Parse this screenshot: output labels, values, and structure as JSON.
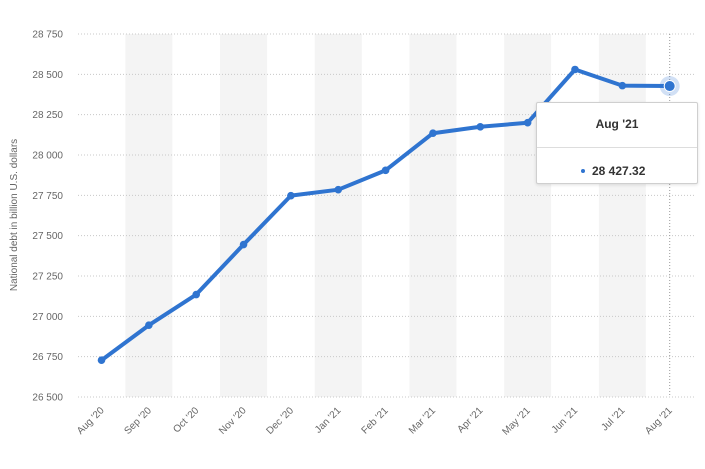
{
  "chart_data": {
    "type": "line",
    "ylabel": "National debt in billion U.S. dollars",
    "categories": [
      "Aug '20",
      "Sep '20",
      "Oct '20",
      "Nov '20",
      "Dec '20",
      "Jan '21",
      "Feb '21",
      "Mar '21",
      "Apr '21",
      "May '21",
      "Jun '21",
      "Jul '21",
      "Aug '21"
    ],
    "series": [
      {
        "values": [
          26728,
          26945,
          27135,
          27445,
          27748,
          27785,
          27905,
          28135,
          28175,
          28200,
          28530,
          28430,
          28427.32
        ]
      }
    ],
    "ylim": [
      26500,
      28750
    ],
    "yticks": [
      26500,
      26750,
      27000,
      27250,
      27500,
      27750,
      28000,
      28250,
      28500,
      28750
    ],
    "ytick_labels": [
      "26 500",
      "26 750",
      "27 000",
      "27 250",
      "27 500",
      "27 750",
      "28 000",
      "28 250",
      "28 500",
      "28 750"
    ],
    "grid": true,
    "line_color": "#2f74d0",
    "band_color": "#f4f4f4"
  },
  "tooltip": {
    "title": "Aug '21",
    "value": "28 427.32",
    "highlight_index": 12
  }
}
